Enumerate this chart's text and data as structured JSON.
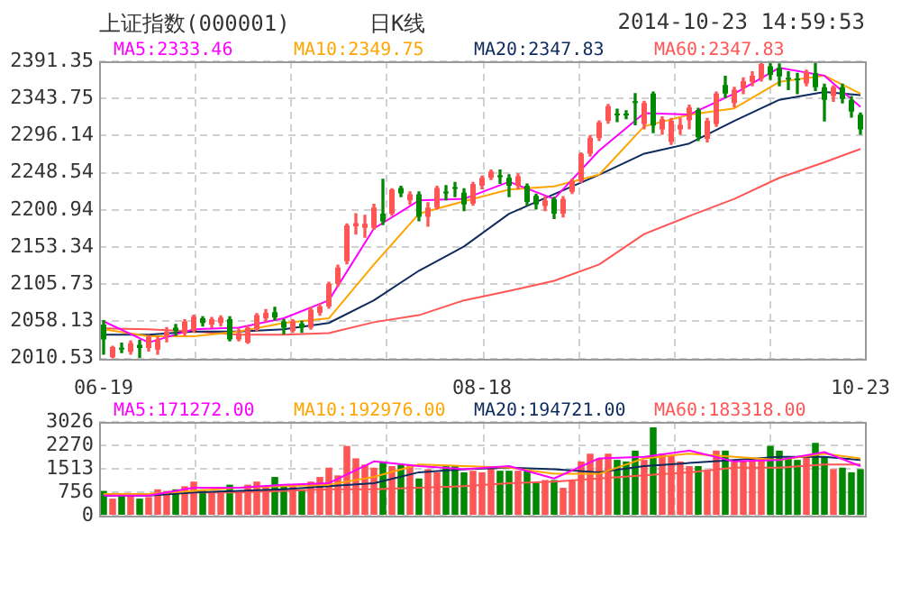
{
  "chart_data": [
    {
      "type": "candlestick",
      "title": "上证指数(000001)",
      "subtitle": "日K线",
      "annotations": [
        "2014-10-23 14:59:53"
      ],
      "categories": [
        "06-19",
        null,
        null,
        null,
        null,
        null,
        null,
        null,
        null,
        null,
        null,
        null,
        null,
        null,
        null,
        null,
        null,
        null,
        null,
        null,
        null,
        null,
        null,
        null,
        null,
        null,
        null,
        null,
        null,
        null,
        null,
        null,
        null,
        null,
        null,
        null,
        null,
        null,
        null,
        null,
        null,
        null,
        "08-18",
        null,
        null,
        null,
        null,
        null,
        null,
        null,
        null,
        null,
        null,
        null,
        null,
        null,
        null,
        null,
        null,
        null,
        null,
        null,
        null,
        null,
        null,
        null,
        null,
        null,
        null,
        null,
        null,
        null,
        null,
        null,
        null,
        null,
        null,
        null,
        null,
        null,
        null,
        null,
        null,
        null,
        "10-23"
      ],
      "ohlc": [
        [
          2054,
          2059,
          2016,
          2035
        ],
        [
          2012,
          2026,
          2011,
          2025
        ],
        [
          2024,
          2030,
          2018,
          2022
        ],
        [
          2019,
          2033,
          2016,
          2030
        ],
        [
          2028,
          2034,
          2012,
          2024
        ],
        [
          2024,
          2040,
          2020,
          2038
        ],
        [
          2022,
          2038,
          2016,
          2035
        ],
        [
          2039,
          2050,
          2032,
          2045
        ],
        [
          2050,
          2054,
          2040,
          2046
        ],
        [
          2043,
          2060,
          2040,
          2058
        ],
        [
          2046,
          2066,
          2044,
          2064
        ],
        [
          2062,
          2064,
          2052,
          2056
        ],
        [
          2054,
          2063,
          2050,
          2061
        ],
        [
          2056,
          2065,
          2052,
          2063
        ],
        [
          2061,
          2064,
          2033,
          2035
        ],
        [
          2035,
          2048,
          2033,
          2043
        ],
        [
          2031,
          2052,
          2030,
          2050
        ],
        [
          2048,
          2068,
          2046,
          2066
        ],
        [
          2062,
          2073,
          2058,
          2069
        ],
        [
          2070,
          2076,
          2060,
          2063
        ],
        [
          2058,
          2060,
          2042,
          2050
        ],
        [
          2046,
          2060,
          2044,
          2058
        ],
        [
          2055,
          2058,
          2044,
          2050
        ],
        [
          2050,
          2076,
          2048,
          2073
        ],
        [
          2069,
          2080,
          2066,
          2077
        ],
        [
          2077,
          2108,
          2075,
          2106
        ],
        [
          2106,
          2130,
          2103,
          2127
        ],
        [
          2135,
          2183,
          2132,
          2181
        ],
        [
          2180,
          2196,
          2170,
          2184
        ],
        [
          2178,
          2194,
          2166,
          2183
        ],
        [
          2178,
          2208,
          2176,
          2204
        ],
        [
          2196,
          2240,
          2182,
          2186
        ],
        [
          2196,
          2228,
          2194,
          2227
        ],
        [
          2229,
          2231,
          2218,
          2222
        ],
        [
          2213,
          2224,
          2208,
          2221
        ],
        [
          2221,
          2224,
          2187,
          2192
        ],
        [
          2192,
          2210,
          2180,
          2204
        ],
        [
          2204,
          2231,
          2202,
          2229
        ],
        [
          2224,
          2232,
          2214,
          2222
        ],
        [
          2229,
          2236,
          2218,
          2228
        ],
        [
          2223,
          2228,
          2200,
          2208
        ],
        [
          2209,
          2236,
          2207,
          2234
        ],
        [
          2232,
          2244,
          2228,
          2242
        ],
        [
          2242,
          2252,
          2240,
          2250
        ],
        [
          2244,
          2252,
          2235,
          2243
        ],
        [
          2242,
          2246,
          2218,
          2232
        ],
        [
          2232,
          2247,
          2228,
          2244
        ],
        [
          2232,
          2234,
          2207,
          2211
        ],
        [
          2219,
          2221,
          2202,
          2208
        ],
        [
          2206,
          2218,
          2200,
          2213
        ],
        [
          2215,
          2217,
          2190,
          2196
        ],
        [
          2196,
          2218,
          2192,
          2215
        ],
        [
          2224,
          2240,
          2222,
          2238
        ],
        [
          2238,
          2274,
          2236,
          2273
        ],
        [
          2273,
          2296,
          2270,
          2293
        ],
        [
          2293,
          2315,
          2290,
          2313
        ],
        [
          2315,
          2336,
          2312,
          2334
        ],
        [
          2323,
          2330,
          2314,
          2322
        ],
        [
          2324,
          2328,
          2318,
          2322
        ],
        [
          2339,
          2350,
          2310,
          2338
        ],
        [
          2311,
          2340,
          2305,
          2338
        ],
        [
          2350,
          2352,
          2300,
          2309
        ],
        [
          2304,
          2320,
          2298,
          2317
        ],
        [
          2288,
          2318,
          2285,
          2315
        ],
        [
          2304,
          2318,
          2298,
          2310
        ],
        [
          2316,
          2335,
          2305,
          2332
        ],
        [
          2329,
          2331,
          2290,
          2294
        ],
        [
          2292,
          2318,
          2288,
          2315
        ],
        [
          2311,
          2352,
          2308,
          2350
        ],
        [
          2361,
          2372,
          2345,
          2350
        ],
        [
          2338,
          2358,
          2333,
          2355
        ],
        [
          2357,
          2370,
          2350,
          2366
        ],
        [
          2365,
          2378,
          2360,
          2373
        ],
        [
          2369,
          2391,
          2366,
          2388
        ],
        [
          2385,
          2390,
          2368,
          2374
        ],
        [
          2383,
          2388,
          2360,
          2372
        ],
        [
          2369,
          2378,
          2355,
          2368
        ],
        [
          2368,
          2376,
          2350,
          2367
        ],
        [
          2363,
          2380,
          2360,
          2378
        ],
        [
          2376,
          2391,
          2354,
          2358
        ],
        [
          2358,
          2362,
          2315,
          2342
        ],
        [
          2347,
          2360,
          2340,
          2358
        ],
        [
          2358,
          2362,
          2338,
          2343
        ],
        [
          2342,
          2346,
          2320,
          2327
        ],
        [
          2323,
          2325,
          2298,
          2304
        ]
      ],
      "colors": [
        "#008800",
        "#ff5555",
        "#008800",
        "#ff5555",
        "#008800",
        "#ff5555",
        "#ff5555",
        "#ff5555",
        "#008800",
        "#ff5555",
        "#ff5555",
        "#008800",
        "#ff5555",
        "#ff5555",
        "#008800",
        "#ff5555",
        "#ff5555",
        "#ff5555",
        "#ff5555",
        "#008800",
        "#008800",
        "#ff5555",
        "#008800",
        "#ff5555",
        "#ff5555",
        "#ff5555",
        "#ff5555",
        "#ff5555",
        "#ff5555",
        "#ff5555",
        "#ff5555",
        "#008800",
        "#ff5555",
        "#008800",
        "#ff5555",
        "#008800",
        "#ff5555",
        "#ff5555",
        "#008800",
        "#008800",
        "#008800",
        "#ff5555",
        "#ff5555",
        "#ff5555",
        "#008800",
        "#008800",
        "#ff5555",
        "#008800",
        "#008800",
        "#ff5555",
        "#008800",
        "#ff5555",
        "#ff5555",
        "#ff5555",
        "#ff5555",
        "#ff5555",
        "#ff5555",
        "#008800",
        "#008800",
        "#008800",
        "#ff5555",
        "#008800",
        "#ff5555",
        "#ff5555",
        "#ff5555",
        "#ff5555",
        "#008800",
        "#ff5555",
        "#ff5555",
        "#008800",
        "#ff5555",
        "#ff5555",
        "#ff5555",
        "#ff5555",
        "#008800",
        "#008800",
        "#008800",
        "#008800",
        "#ff5555",
        "#008800",
        "#008800",
        "#ff5555",
        "#008800",
        "#008800",
        "#008800"
      ],
      "ylim": [
        2010.53,
        2391.35
      ],
      "yticks": [
        2010.53,
        2058.13,
        2105.73,
        2153.34,
        2200.94,
        2248.54,
        2296.14,
        2343.75,
        2391.35
      ],
      "grid": true,
      "series": [
        {
          "type": "line",
          "name": "MA5:2333.46",
          "color": "#ff00ff",
          "values": [
            2058,
            null,
            null,
            null,
            null,
            2031,
            null,
            null,
            null,
            null,
            2048,
            null,
            null,
            null,
            null,
            2050,
            null,
            null,
            null,
            null,
            2062,
            null,
            null,
            null,
            null,
            2085,
            null,
            null,
            null,
            null,
            2177,
            null,
            null,
            null,
            null,
            2213,
            null,
            null,
            null,
            null,
            2215,
            null,
            null,
            null,
            null,
            2237,
            null,
            null,
            null,
            null,
            2215,
            null,
            null,
            null,
            null,
            2277,
            null,
            null,
            null,
            null,
            2325,
            null,
            null,
            null,
            null,
            2323,
            null,
            null,
            null,
            null,
            2350,
            null,
            null,
            null,
            null,
            2383,
            null,
            null,
            null,
            null,
            2373,
            null,
            null,
            null,
            2333
          ]
        },
        {
          "type": "line",
          "name": "MA10:2349.75",
          "color": "#ffa500",
          "values": [
            2048,
            null,
            null,
            null,
            null,
            2039,
            null,
            null,
            null,
            null,
            2039,
            null,
            null,
            null,
            null,
            2045,
            null,
            null,
            null,
            null,
            2056,
            null,
            null,
            null,
            null,
            2062,
            null,
            null,
            null,
            null,
            2131,
            null,
            null,
            null,
            null,
            2196,
            null,
            null,
            null,
            null,
            2212,
            null,
            null,
            null,
            null,
            2227,
            null,
            null,
            null,
            null,
            2231,
            null,
            null,
            null,
            null,
            2246,
            null,
            null,
            null,
            null,
            2308,
            null,
            null,
            null,
            null,
            2323,
            null,
            null,
            null,
            null,
            2331,
            null,
            null,
            null,
            null,
            2365,
            null,
            null,
            null,
            null,
            2373,
            null,
            null,
            null,
            2350
          ]
        },
        {
          "type": "line",
          "name": "MA20:2347.83",
          "color": "#0d2b5e",
          "values": [
            2041,
            null,
            null,
            null,
            null,
            2041,
            null,
            null,
            null,
            null,
            2045,
            null,
            null,
            null,
            null,
            2045,
            null,
            null,
            null,
            null,
            2048,
            null,
            null,
            null,
            null,
            2056,
            null,
            null,
            null,
            null,
            2085,
            null,
            null,
            null,
            null,
            2123,
            null,
            null,
            null,
            null,
            2154,
            null,
            null,
            null,
            null,
            2196,
            null,
            null,
            null,
            null,
            2221,
            null,
            null,
            null,
            null,
            2246,
            null,
            null,
            null,
            null,
            2273,
            null,
            null,
            null,
            null,
            2286,
            null,
            null,
            null,
            null,
            2315,
            null,
            null,
            null,
            null,
            2342,
            null,
            null,
            null,
            null,
            2352,
            null,
            null,
            null,
            2348
          ]
        },
        {
          "type": "line",
          "name": "MA60:2347.83",
          "color": "#ff5555",
          "values": [
            2049,
            null,
            null,
            null,
            null,
            2048,
            null,
            null,
            null,
            null,
            2045,
            null,
            null,
            null,
            null,
            2041,
            null,
            null,
            null,
            null,
            2041,
            null,
            null,
            null,
            null,
            2043,
            null,
            null,
            null,
            null,
            2057,
            null,
            null,
            null,
            null,
            2066,
            null,
            null,
            null,
            null,
            2085,
            null,
            null,
            null,
            null,
            2097,
            null,
            null,
            null,
            null,
            2110,
            null,
            null,
            null,
            null,
            2131,
            null,
            null,
            null,
            null,
            2170,
            null,
            null,
            null,
            null,
            2193,
            null,
            null,
            null,
            null,
            2215,
            null,
            null,
            null,
            null,
            2242,
            null,
            null,
            null,
            null,
            2262,
            null,
            null,
            null,
            2279
          ]
        }
      ]
    },
    {
      "type": "bar",
      "tick_labels": "y",
      "categories": [
        null,
        null,
        null,
        null,
        null,
        null,
        null,
        null,
        null,
        null,
        null,
        null,
        null,
        null,
        null,
        null,
        null,
        null,
        null,
        null,
        null,
        null,
        null,
        null,
        null,
        null,
        null,
        null,
        null,
        null,
        null,
        null,
        null,
        null,
        null,
        null,
        null,
        null,
        null,
        null,
        null,
        null,
        null,
        null,
        null,
        null,
        null,
        null,
        null,
        null,
        null,
        null,
        null,
        null,
        null,
        null,
        null,
        null,
        null,
        null,
        null,
        null,
        null,
        null,
        null,
        null,
        null,
        null,
        null,
        null,
        null,
        null,
        null,
        null,
        null,
        null,
        null,
        null,
        null,
        null,
        null,
        null,
        null,
        null,
        null
      ],
      "ylim": [
        0,
        3026
      ],
      "yticks": [
        0,
        756,
        1513,
        2270,
        3026
      ],
      "grid": true,
      "series": [
        {
          "type": "bar",
          "colors": [
            "#008800",
            "#ff5555",
            "#008800",
            "#ff5555",
            "#008800",
            "#ff5555",
            "#ff5555",
            "#ff5555",
            "#008800",
            "#ff5555",
            "#ff5555",
            "#008800",
            "#ff5555",
            "#ff5555",
            "#008800",
            "#ff5555",
            "#ff5555",
            "#ff5555",
            "#ff5555",
            "#008800",
            "#008800",
            "#ff5555",
            "#008800",
            "#ff5555",
            "#ff5555",
            "#ff5555",
            "#ff5555",
            "#ff5555",
            "#ff5555",
            "#ff5555",
            "#ff5555",
            "#008800",
            "#ff5555",
            "#008800",
            "#ff5555",
            "#008800",
            "#ff5555",
            "#ff5555",
            "#008800",
            "#008800",
            "#008800",
            "#ff5555",
            "#ff5555",
            "#ff5555",
            "#008800",
            "#008800",
            "#ff5555",
            "#008800",
            "#008800",
            "#ff5555",
            "#008800",
            "#ff5555",
            "#ff5555",
            "#ff5555",
            "#ff5555",
            "#ff5555",
            "#ff5555",
            "#008800",
            "#008800",
            "#008800",
            "#ff5555",
            "#008800",
            "#ff5555",
            "#ff5555",
            "#ff5555",
            "#ff5555",
            "#008800",
            "#ff5555",
            "#ff5555",
            "#008800",
            "#ff5555",
            "#ff5555",
            "#ff5555",
            "#ff5555",
            "#008800",
            "#008800",
            "#008800",
            "#008800",
            "#ff5555",
            "#008800",
            "#008800",
            "#ff5555",
            "#008800",
            "#008800",
            "#008800"
          ],
          "values": [
            800,
            550,
            650,
            650,
            550,
            600,
            850,
            800,
            850,
            950,
            1100,
            850,
            750,
            800,
            1000,
            750,
            1000,
            1100,
            950,
            1250,
            950,
            950,
            850,
            1100,
            1250,
            1550,
            1300,
            2250,
            1850,
            1650,
            1550,
            1750,
            1600,
            1650,
            1650,
            1200,
            1500,
            1400,
            1600,
            1600,
            1400,
            1450,
            1400,
            1600,
            1450,
            1450,
            1450,
            1450,
            1100,
            1150,
            1150,
            900,
            1150,
            1750,
            2000,
            1850,
            2000,
            1800,
            1750,
            2100,
            1800,
            2850,
            2000,
            1950,
            1750,
            1600,
            1600,
            1450,
            2100,
            2100,
            1750,
            1750,
            1850,
            1850,
            2250,
            2100,
            1850,
            1800,
            1900,
            2350,
            1900,
            1500,
            1550,
            1400,
            1500
          ]
        },
        {
          "type": "line",
          "name": "MA5:171272.00",
          "color": "#ff00ff",
          "values": [
            650,
            null,
            null,
            null,
            null,
            650,
            null,
            null,
            null,
            null,
            900,
            null,
            null,
            null,
            null,
            900,
            null,
            null,
            null,
            null,
            1000,
            null,
            null,
            null,
            null,
            1050,
            null,
            null,
            null,
            null,
            1750,
            null,
            null,
            null,
            null,
            1600,
            null,
            null,
            null,
            null,
            1500,
            null,
            null,
            null,
            null,
            1600,
            null,
            null,
            null,
            null,
            1200,
            null,
            null,
            null,
            null,
            1850,
            null,
            null,
            null,
            null,
            1900,
            null,
            null,
            null,
            null,
            2100,
            null,
            null,
            null,
            null,
            1750,
            null,
            null,
            null,
            null,
            1800,
            null,
            null,
            null,
            null,
            2050,
            null,
            null,
            null,
            1600
          ]
        },
        {
          "type": "line",
          "name": "MA10:192976.00",
          "color": "#ffa500",
          "values": [
            700,
            null,
            null,
            null,
            null,
            700,
            null,
            null,
            null,
            null,
            800,
            null,
            null,
            null,
            null,
            900,
            null,
            null,
            null,
            null,
            950,
            null,
            null,
            null,
            null,
            1000,
            null,
            null,
            null,
            null,
            1250,
            null,
            null,
            null,
            null,
            1650,
            null,
            null,
            null,
            null,
            1600,
            null,
            null,
            null,
            null,
            1550,
            null,
            null,
            null,
            null,
            1350,
            null,
            null,
            null,
            null,
            1350,
            null,
            null,
            null,
            null,
            1850,
            null,
            null,
            null,
            null,
            2000,
            null,
            null,
            null,
            null,
            1900,
            null,
            null,
            null,
            null,
            1800,
            null,
            null,
            null,
            null,
            2000,
            null,
            null,
            null,
            1850
          ]
        },
        {
          "type": "line",
          "name": "MA20:194721.00",
          "color": "#0d2b5e",
          "values": [
            650,
            null,
            null,
            null,
            null,
            650,
            null,
            null,
            null,
            null,
            750,
            null,
            null,
            null,
            null,
            800,
            null,
            null,
            null,
            null,
            850,
            null,
            null,
            null,
            null,
            950,
            null,
            null,
            null,
            null,
            1050,
            null,
            null,
            null,
            null,
            1400,
            null,
            null,
            null,
            null,
            1500,
            null,
            null,
            null,
            null,
            1550,
            null,
            null,
            null,
            null,
            1500,
            null,
            null,
            null,
            null,
            1400,
            null,
            null,
            null,
            null,
            1600,
            null,
            null,
            null,
            null,
            1700,
            null,
            null,
            null,
            null,
            1800,
            null,
            null,
            null,
            null,
            1900,
            null,
            null,
            null,
            null,
            1900,
            null,
            null,
            null,
            1800
          ]
        },
        {
          "type": "line",
          "name": "MA60:183318.00",
          "color": "#ff5555",
          "values": [
            700,
            null,
            null,
            null,
            null,
            700,
            null,
            null,
            null,
            null,
            750,
            null,
            null,
            null,
            null,
            750,
            null,
            null,
            null,
            null,
            800,
            null,
            null,
            null,
            null,
            850,
            null,
            null,
            null,
            null,
            850,
            null,
            null,
            null,
            null,
            900,
            null,
            null,
            null,
            null,
            950,
            null,
            null,
            null,
            null,
            1050,
            null,
            null,
            null,
            null,
            1100,
            null,
            null,
            null,
            null,
            1200,
            null,
            null,
            null,
            null,
            1300,
            null,
            null,
            null,
            null,
            1400,
            null,
            null,
            null,
            null,
            1550,
            null,
            null,
            null,
            null,
            1550,
            null,
            null,
            null,
            null,
            1650,
            null,
            null,
            null,
            1650
          ]
        }
      ]
    }
  ]
}
